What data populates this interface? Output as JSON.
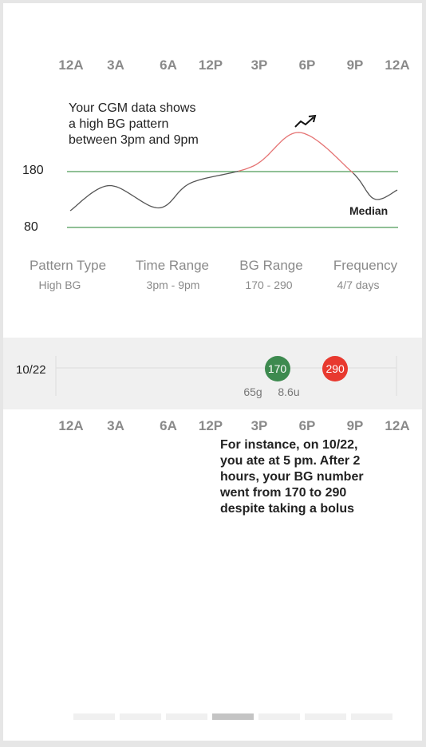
{
  "time_axis_labels": [
    "12A",
    "3A",
    "6A",
    "12P",
    "3P",
    "6P",
    "9P",
    "12A"
  ],
  "insight_message_lines": [
    "Your CGM data shows",
    "a high BG pattern",
    "between 3pm and 9pm"
  ],
  "trend_icon": "trend-up-arrow-icon",
  "chart_data": {
    "type": "line",
    "x": [
      "12A",
      "3A",
      "6A",
      "12P",
      "3P",
      "6P",
      "9P",
      "12A"
    ],
    "reference_lines": [
      180,
      80
    ],
    "reference_line_color": "#4e9a58",
    "series": [
      {
        "name": "Median",
        "color": "#555555",
        "highlight_color": "#e57373",
        "points": [
          {
            "x": 0.0,
            "y": 110
          },
          {
            "x": 0.12,
            "y": 155
          },
          {
            "x": 0.27,
            "y": 115
          },
          {
            "x": 0.37,
            "y": 160
          },
          {
            "x": 0.56,
            "y": 190
          },
          {
            "x": 0.7,
            "y": 250
          },
          {
            "x": 0.86,
            "y": 180
          },
          {
            "x": 0.93,
            "y": 131
          },
          {
            "x": 1.0,
            "y": 147
          }
        ],
        "highlight_x_range": [
          0.52,
          0.87
        ]
      }
    ],
    "y_labels": [
      "180",
      "80"
    ],
    "legend": "Median"
  },
  "stats": [
    {
      "label": "Pattern Type",
      "value": "High BG"
    },
    {
      "label": "Time Range",
      "value": "3pm - 9pm"
    },
    {
      "label": "BG Range",
      "value": "170 - 290"
    },
    {
      "label": "Frequency",
      "value": "4/7 days"
    }
  ],
  "day_detail": {
    "date": "10/22",
    "readings": [
      {
        "value": "170",
        "color": "#3d8a4f",
        "time_fraction": 0.65
      },
      {
        "value": "290",
        "color": "#e8392f",
        "time_fraction": 0.82
      }
    ],
    "carbs": "65g",
    "insulin": "8.6u"
  },
  "example_message_lines": [
    "For instance, on 10/22,",
    "you ate at 5 pm. After 2",
    "hours, your BG number",
    "went from 170 to 290",
    "despite taking a bolus"
  ],
  "pager": {
    "count": 7,
    "active_index": 3
  }
}
